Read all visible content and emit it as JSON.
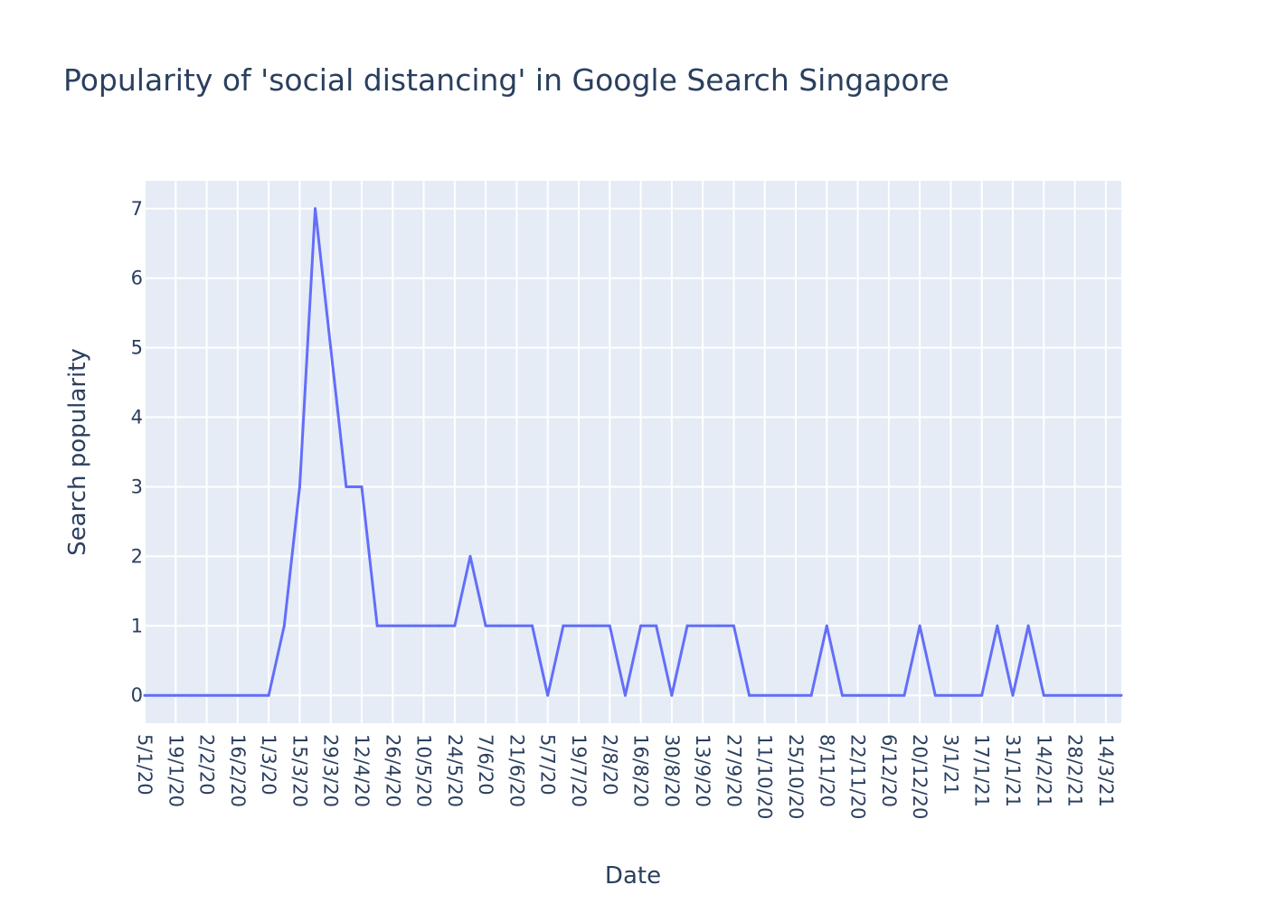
{
  "chart_data": {
    "type": "line",
    "title": "Popularity of 'social distancing' in Google Search Singapore",
    "xlabel": "Date",
    "ylabel": "Search popularity",
    "x_tick_labels": [
      "5/1/20",
      "19/1/20",
      "2/2/20",
      "16/2/20",
      "1/3/20",
      "15/3/20",
      "29/3/20",
      "12/4/20",
      "26/4/20",
      "10/5/20",
      "24/5/20",
      "7/6/20",
      "21/6/20",
      "5/7/20",
      "19/7/20",
      "2/8/20",
      "16/8/20",
      "30/8/20",
      "13/9/20",
      "27/9/20",
      "11/10/20",
      "25/10/20",
      "8/11/20",
      "22/11/20",
      "6/12/20",
      "20/12/20",
      "3/1/21",
      "17/1/21",
      "31/1/21",
      "14/2/21",
      "28/2/21",
      "14/3/21"
    ],
    "y_ticks": [
      0,
      1,
      2,
      3,
      4,
      5,
      6,
      7
    ],
    "ylim": [
      -0.4,
      7.4
    ],
    "grid": true,
    "line_color": "#636efa",
    "background_color": "#e5ecf6",
    "series": [
      {
        "x": [
          "5/1/20",
          "12/1/20",
          "19/1/20",
          "26/1/20",
          "2/2/20",
          "9/2/20",
          "16/2/20",
          "23/2/20",
          "1/3/20",
          "8/3/20",
          "15/3/20",
          "22/3/20",
          "29/3/20",
          "5/4/20",
          "12/4/20",
          "19/4/20",
          "26/4/20",
          "3/5/20",
          "10/5/20",
          "17/5/20",
          "24/5/20",
          "31/5/20",
          "7/6/20",
          "14/6/20",
          "21/6/20",
          "28/6/20",
          "5/7/20",
          "12/7/20",
          "19/7/20",
          "26/7/20",
          "2/8/20",
          "9/8/20",
          "16/8/20",
          "23/8/20",
          "30/8/20",
          "6/9/20",
          "13/9/20",
          "20/9/20",
          "27/9/20",
          "4/10/20",
          "11/10/20",
          "18/10/20",
          "25/10/20",
          "1/11/20",
          "8/11/20",
          "15/11/20",
          "22/11/20",
          "29/11/20",
          "6/12/20",
          "13/12/20",
          "20/12/20",
          "27/12/20",
          "3/1/21",
          "10/1/21",
          "17/1/21",
          "24/1/21",
          "31/1/21",
          "7/2/21",
          "14/2/21",
          "21/2/21",
          "28/2/21",
          "7/3/21",
          "14/3/21",
          "21/3/21"
        ],
        "values": [
          0,
          0,
          0,
          0,
          0,
          0,
          0,
          0,
          0,
          1,
          3,
          7,
          5,
          3,
          3,
          1,
          1,
          1,
          1,
          1,
          1,
          2,
          1,
          1,
          1,
          1,
          0,
          1,
          1,
          1,
          1,
          0,
          1,
          1,
          0,
          1,
          1,
          1,
          1,
          0,
          0,
          0,
          0,
          0,
          1,
          0,
          0,
          0,
          0,
          0,
          1,
          0,
          0,
          0,
          0,
          1,
          0,
          1,
          0,
          0,
          0,
          0,
          0,
          0
        ]
      }
    ]
  }
}
